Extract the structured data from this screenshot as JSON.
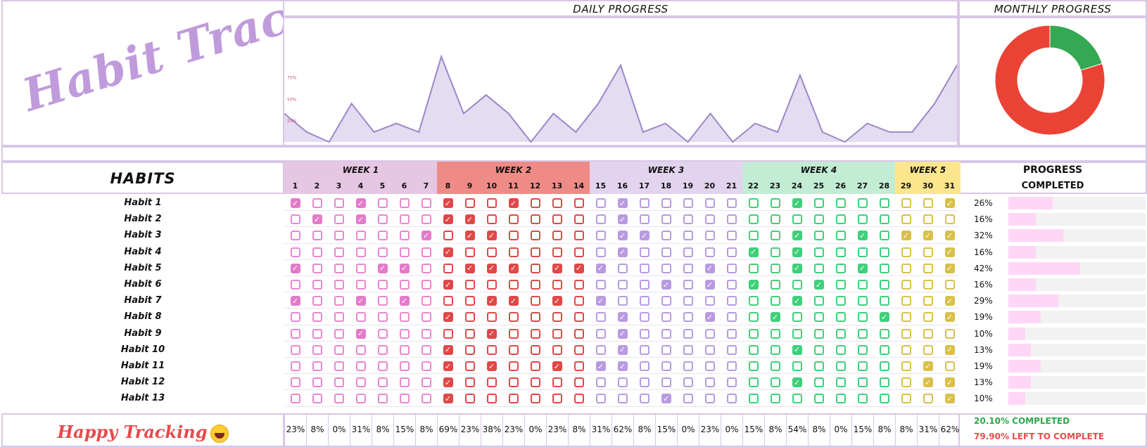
{
  "title": "Habit Tracker",
  "daily_progress_label": "DAILY PROGRESS",
  "monthly_progress_label": "MONTHLY PROGRESS",
  "habits_header": "HABITS",
  "progress_header": "PROGRESS",
  "completed_header": "COMPLETED",
  "footer_text": "Happy Tracking",
  "completed_summary": "20.10% COMPLETED",
  "left_summary": "79.90% LEFT TO COMPLETE",
  "weeks": [
    {
      "label": "WEEK 1",
      "days": [
        1,
        2,
        3,
        4,
        5,
        6,
        7
      ],
      "color": "#e6c7e3",
      "check_color": "#e37bc9",
      "box_color": "#ea86d1"
    },
    {
      "label": "WEEK 2",
      "days": [
        8,
        9,
        10,
        11,
        12,
        13,
        14
      ],
      "color": "#ef8b86",
      "check_color": "#e04848",
      "box_color": "#e04848"
    },
    {
      "label": "WEEK 3",
      "days": [
        15,
        16,
        17,
        18,
        19,
        20,
        21
      ],
      "color": "#e2d4ef",
      "check_color": "#b99ae0",
      "box_color": "#b99ae0"
    },
    {
      "label": "WEEK 4",
      "days": [
        22,
        23,
        24,
        25,
        26,
        27,
        28
      ],
      "color": "#c3ecd5",
      "check_color": "#3ed07a",
      "box_color": "#3ed07a"
    },
    {
      "label": "WEEK 5",
      "days": [
        29,
        30,
        31
      ],
      "color": "#fbe68d",
      "check_color": "#d9c04a",
      "box_color": "#d9c04a"
    }
  ],
  "habits": [
    {
      "name": "Habit 1",
      "pct": "26%",
      "value": 0.26,
      "checks": [
        1,
        4,
        8,
        11,
        16,
        24,
        31
      ]
    },
    {
      "name": "Habit 2",
      "pct": "16%",
      "value": 0.16,
      "checks": [
        2,
        4,
        8,
        9,
        16
      ]
    },
    {
      "name": "Habit 3",
      "pct": "32%",
      "value": 0.32,
      "checks": [
        7,
        9,
        10,
        16,
        17,
        24,
        27,
        29,
        30,
        31
      ]
    },
    {
      "name": "Habit 4",
      "pct": "16%",
      "value": 0.16,
      "checks": [
        8,
        16,
        22,
        24,
        31
      ]
    },
    {
      "name": "Habit 5",
      "pct": "42%",
      "value": 0.42,
      "checks": [
        1,
        5,
        6,
        9,
        10,
        11,
        13,
        14,
        15,
        20,
        24,
        27,
        31
      ]
    },
    {
      "name": "Habit 6",
      "pct": "16%",
      "value": 0.16,
      "checks": [
        8,
        18,
        20,
        22,
        25
      ]
    },
    {
      "name": "Habit 7",
      "pct": "29%",
      "value": 0.29,
      "checks": [
        1,
        4,
        6,
        10,
        11,
        13,
        15,
        24,
        31
      ]
    },
    {
      "name": "Habit 8",
      "pct": "19%",
      "value": 0.19,
      "checks": [
        8,
        16,
        20,
        23,
        28,
        31
      ]
    },
    {
      "name": "Habit 9",
      "pct": "10%",
      "value": 0.1,
      "checks": [
        4,
        10,
        16
      ]
    },
    {
      "name": "Habit 10",
      "pct": "13%",
      "value": 0.13,
      "checks": [
        8,
        16,
        24,
        31
      ]
    },
    {
      "name": "Habit 11",
      "pct": "19%",
      "value": 0.19,
      "checks": [
        8,
        10,
        13,
        15,
        16,
        30
      ]
    },
    {
      "name": "Habit 12",
      "pct": "13%",
      "value": 0.13,
      "checks": [
        8,
        24,
        30,
        31
      ]
    },
    {
      "name": "Habit 13",
      "pct": "10%",
      "value": 0.1,
      "checks": [
        8,
        18,
        31
      ]
    }
  ],
  "daily_percentages": [
    "23%",
    "8%",
    "0%",
    "31%",
    "8%",
    "15%",
    "8%",
    "69%",
    "23%",
    "38%",
    "23%",
    "0%",
    "23%",
    "8%",
    "31%",
    "62%",
    "8%",
    "15%",
    "0%",
    "23%",
    "0%",
    "15%",
    "8%",
    "54%",
    "8%",
    "0%",
    "15%",
    "8%",
    "8%",
    "31%",
    "62%"
  ],
  "chart_data": [
    {
      "type": "area",
      "title": "DAILY PROGRESS",
      "x": [
        1,
        2,
        3,
        4,
        5,
        6,
        7,
        8,
        9,
        10,
        11,
        12,
        13,
        14,
        15,
        16,
        17,
        18,
        19,
        20,
        21,
        22,
        23,
        24,
        25,
        26,
        27,
        28,
        29,
        30,
        31
      ],
      "values": [
        23,
        8,
        0,
        31,
        8,
        15,
        8,
        69,
        23,
        38,
        23,
        0,
        23,
        8,
        31,
        62,
        8,
        15,
        0,
        23,
        0,
        15,
        8,
        54,
        8,
        0,
        15,
        8,
        8,
        31,
        62
      ],
      "ytick_labels": [
        "75%",
        "50%",
        "25%"
      ],
      "ylim": [
        0,
        100
      ],
      "fill_color": "#e4dcf0",
      "line_color": "#9b87c9"
    },
    {
      "type": "pie",
      "title": "MONTHLY PROGRESS",
      "labels": [
        "COMPLETED",
        "LEFT TO COMPLETE"
      ],
      "values": [
        20.1,
        79.9
      ],
      "colors": [
        "#34a853",
        "#ea4335"
      ],
      "donut": true
    }
  ]
}
